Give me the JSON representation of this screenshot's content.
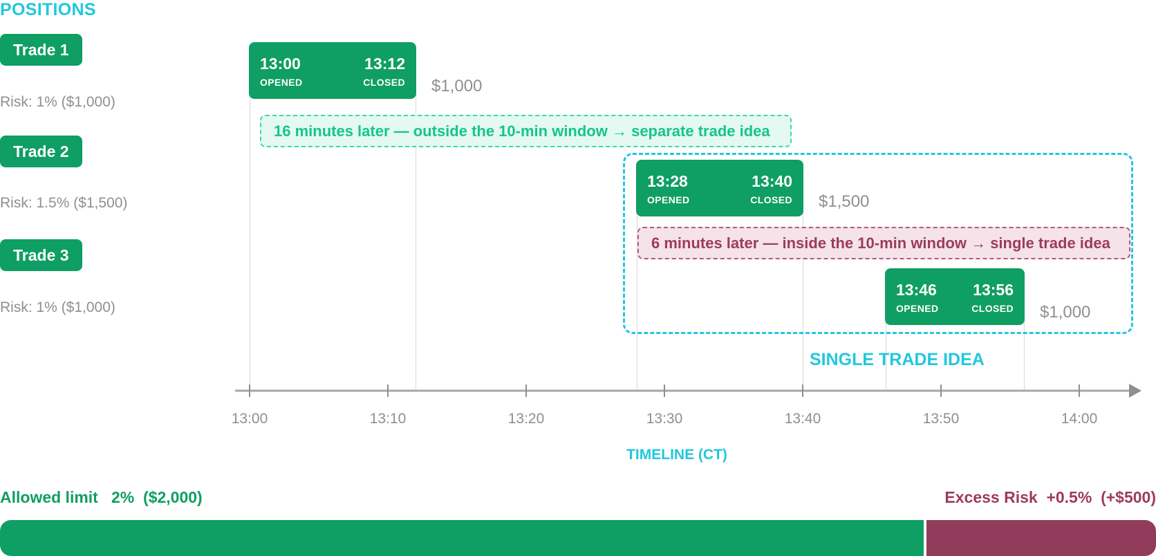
{
  "header": {
    "title": "POSITIONS"
  },
  "trades": [
    {
      "name": "Trade 1",
      "risk": "Risk: 1% ($1,000)",
      "opened_time": "13:00",
      "closed_time": "13:12",
      "opened_label": "OPENED",
      "closed_label": "CLOSED",
      "amount": "$1,000"
    },
    {
      "name": "Trade 2",
      "risk": "Risk: 1.5% ($1,500)",
      "opened_time": "13:28",
      "closed_time": "13:40",
      "opened_label": "OPENED",
      "closed_label": "CLOSED",
      "amount": "$1,500"
    },
    {
      "name": "Trade 3",
      "risk": "Risk: 1% ($1,000)",
      "opened_time": "13:46",
      "closed_time": "13:56",
      "opened_label": "OPENED",
      "closed_label": "CLOSED",
      "amount": "$1,000"
    }
  ],
  "notes": {
    "gap_1": "16 minutes later — outside the 10-min window → separate trade idea",
    "gap_2": "6 minutes later — inside the 10-min window → single trade idea"
  },
  "group": {
    "label": "SINGLE TRADE IDEA"
  },
  "timeline": {
    "title": "TIMELINE (CT)",
    "ticks": [
      "13:00",
      "13:10",
      "13:20",
      "13:30",
      "13:40",
      "13:50",
      "14:00"
    ]
  },
  "limit_bar": {
    "allowed_label": "Allowed limit   2%  ($2,000)",
    "excess_label": "Excess Risk  +0.5%  (+$500)",
    "allowed_percent": 2,
    "excess_percent": 0.5
  },
  "colors": {
    "trade_green": "#0f9e63",
    "accent_cyan": "#22c7dd",
    "excess_red": "#923c5c",
    "note_green": "#17c48c",
    "muted_gray": "#8f8f8f"
  }
}
